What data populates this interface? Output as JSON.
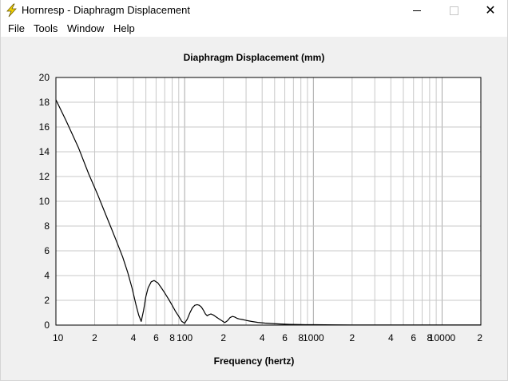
{
  "window": {
    "title": "Hornresp - Diaphragm Displacement",
    "close_glyph": "✕"
  },
  "menu": [
    "File",
    "Tools",
    "Window",
    "Help"
  ],
  "colors": {
    "plot_bg": "#ffffff",
    "grid": "#c8c8c8",
    "curve": "#000000",
    "client_bg": "#f0f0f0",
    "icon_yellow": "#f5d400"
  },
  "icons": {
    "app": "lightning-bolt-icon"
  },
  "chart_data": {
    "type": "line",
    "title": "Diaphragm Displacement (mm)",
    "xlabel": "Frequency (hertz)",
    "ylabel": "",
    "xscale": "log",
    "xlim": [
      10,
      20000
    ],
    "ylim": [
      0,
      20
    ],
    "grid": true,
    "yticks": [
      0,
      2,
      4,
      6,
      8,
      10,
      12,
      14,
      16,
      18,
      20
    ],
    "xtick_labels": [
      {
        "value": 10,
        "label": "10"
      },
      {
        "value": 20,
        "label": "2"
      },
      {
        "value": 40,
        "label": "4"
      },
      {
        "value": 60,
        "label": "6"
      },
      {
        "value": 80,
        "label": "8"
      },
      {
        "value": 100,
        "label": "100"
      },
      {
        "value": 200,
        "label": "2"
      },
      {
        "value": 400,
        "label": "4"
      },
      {
        "value": 600,
        "label": "6"
      },
      {
        "value": 800,
        "label": "8"
      },
      {
        "value": 1000,
        "label": "1000"
      },
      {
        "value": 2000,
        "label": "2"
      },
      {
        "value": 4000,
        "label": "4"
      },
      {
        "value": 6000,
        "label": "6"
      },
      {
        "value": 8000,
        "label": "8"
      },
      {
        "value": 10000,
        "label": "10000"
      },
      {
        "value": 20000,
        "label": "2"
      }
    ],
    "series": [
      {
        "x": [
          10,
          12,
          15,
          18,
          21,
          24,
          27,
          30,
          33,
          36,
          39,
          42,
          44,
          46,
          48,
          50,
          52,
          55,
          58,
          62,
          66,
          70,
          75,
          80,
          85,
          90,
          95,
          100,
          105,
          110,
          115,
          120,
          125,
          130,
          135,
          140,
          145,
          150,
          155,
          160,
          168,
          176,
          185,
          195,
          205,
          215,
          225,
          235,
          245,
          255,
          265,
          280,
          300,
          330,
          370,
          420,
          480,
          550,
          650,
          800,
          1000,
          1500,
          2000,
          4000,
          8000,
          20000
        ],
        "y": [
          18.2,
          16.5,
          14.3,
          12.2,
          10.6,
          9.1,
          7.8,
          6.6,
          5.5,
          4.3,
          3.0,
          1.6,
          0.8,
          0.3,
          1.2,
          2.3,
          3.0,
          3.5,
          3.6,
          3.4,
          3.0,
          2.6,
          2.1,
          1.6,
          1.1,
          0.7,
          0.3,
          0.15,
          0.5,
          1.0,
          1.4,
          1.6,
          1.65,
          1.6,
          1.45,
          1.2,
          0.9,
          0.75,
          0.85,
          0.9,
          0.8,
          0.65,
          0.5,
          0.35,
          0.2,
          0.35,
          0.6,
          0.7,
          0.65,
          0.55,
          0.5,
          0.45,
          0.38,
          0.3,
          0.22,
          0.16,
          0.12,
          0.09,
          0.06,
          0.04,
          0.03,
          0.02,
          0.015,
          0.01,
          0.008,
          0.005
        ]
      }
    ]
  }
}
